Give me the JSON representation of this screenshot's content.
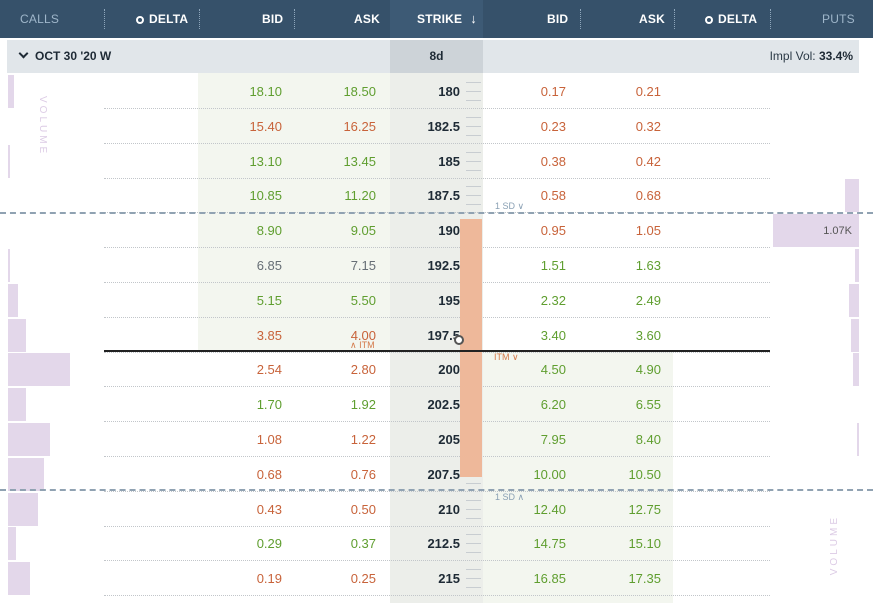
{
  "header": {
    "calls_label": "CALLS",
    "call_delta_label": "DELTA",
    "call_bid_label": "BID",
    "call_ask_label": "ASK",
    "strike_label": "STRIKE",
    "sort_icon": "↓",
    "put_bid_label": "BID",
    "put_ask_label": "ASK",
    "put_delta_label": "DELTA",
    "puts_label": "PUTS"
  },
  "subheader": {
    "expiry": "OCT 30 '20 W",
    "days": "8d",
    "impl_vol_label": "Impl Vol:",
    "impl_vol_value": "33.4%"
  },
  "volume_label": "VOLUME",
  "put_volume_max": "1.07K",
  "sd_labels": {
    "upper": "1 SD ∨",
    "lower": "1 SD ∧"
  },
  "itm_labels": {
    "calls": "∧ ITM",
    "puts": "ITM ∨"
  },
  "rows": [
    {
      "strike": "180",
      "call_bid": "18.10",
      "call_ask": "18.50",
      "put_bid": "0.17",
      "put_ask": "0.21"
    },
    {
      "strike": "182.5",
      "call_bid": "15.40",
      "call_ask": "16.25",
      "put_bid": "0.23",
      "put_ask": "0.32"
    },
    {
      "strike": "185",
      "call_bid": "13.10",
      "call_ask": "13.45",
      "put_bid": "0.38",
      "put_ask": "0.42"
    },
    {
      "strike": "187.5",
      "call_bid": "10.85",
      "call_ask": "11.20",
      "put_bid": "0.58",
      "put_ask": "0.68"
    },
    {
      "strike": "190",
      "call_bid": "8.90",
      "call_ask": "9.05",
      "put_bid": "0.95",
      "put_ask": "1.05"
    },
    {
      "strike": "192.5",
      "call_bid": "6.85",
      "call_ask": "7.15",
      "put_bid": "1.51",
      "put_ask": "1.63"
    },
    {
      "strike": "195",
      "call_bid": "5.15",
      "call_ask": "5.50",
      "put_bid": "2.32",
      "put_ask": "2.49"
    },
    {
      "strike": "197.5",
      "call_bid": "3.85",
      "call_ask": "4.00",
      "put_bid": "3.40",
      "put_ask": "3.60"
    },
    {
      "strike": "200",
      "call_bid": "2.54",
      "call_ask": "2.80",
      "put_bid": "4.50",
      "put_ask": "4.90"
    },
    {
      "strike": "202.5",
      "call_bid": "1.70",
      "call_ask": "1.92",
      "put_bid": "6.20",
      "put_ask": "6.55"
    },
    {
      "strike": "205",
      "call_bid": "1.08",
      "call_ask": "1.22",
      "put_bid": "7.95",
      "put_ask": "8.40"
    },
    {
      "strike": "207.5",
      "call_bid": "0.68",
      "call_ask": "0.76",
      "put_bid": "10.00",
      "put_ask": "10.50"
    },
    {
      "strike": "210",
      "call_bid": "0.43",
      "call_ask": "0.50",
      "put_bid": "12.40",
      "put_ask": "12.75"
    },
    {
      "strike": "212.5",
      "call_bid": "0.29",
      "call_ask": "0.37",
      "put_bid": "14.75",
      "put_ask": "15.10"
    },
    {
      "strike": "215",
      "call_bid": "0.19",
      "call_ask": "0.25",
      "put_bid": "16.85",
      "put_ask": "17.35"
    }
  ]
}
